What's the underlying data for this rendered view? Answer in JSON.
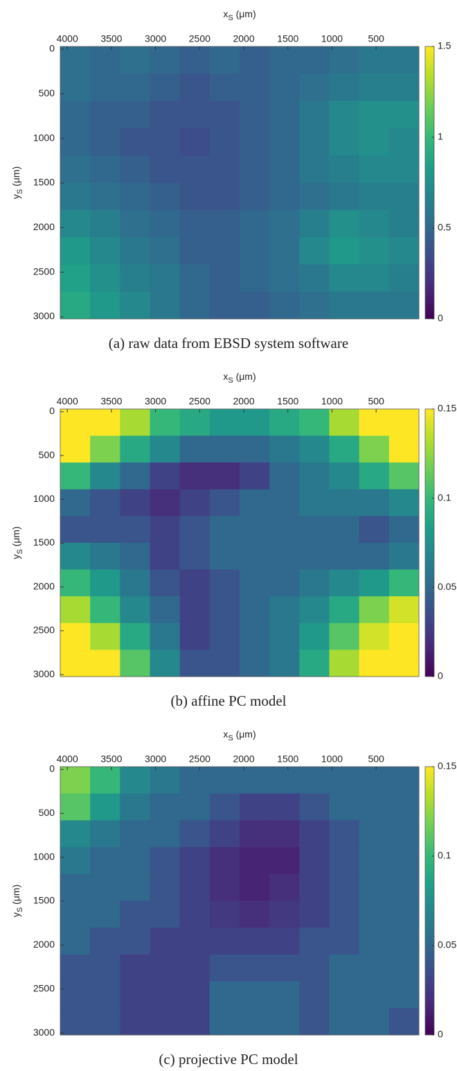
{
  "chart_data": [
    {
      "type": "heatmap",
      "caption": "(a) raw data from EBSD system software",
      "xlabel": "x",
      "xlabel_sub": "S",
      "xlabel_unit": " (μm)",
      "ylabel": "y",
      "ylabel_sub": "S",
      "ylabel_unit": " (μm)",
      "xlim": [
        4080,
        15
      ],
      "xticks": [
        4000,
        3500,
        3000,
        2500,
        2000,
        1500,
        1000,
        500
      ],
      "ylim": [
        -31,
        3023
      ],
      "yticks": [
        0,
        500,
        1000,
        1500,
        2000,
        2500,
        3000
      ],
      "colormap": "viridis",
      "zlim": [
        0,
        1.5
      ],
      "zticks": [
        0,
        0.5,
        1,
        1.5
      ],
      "z": [
        [
          0.55,
          0.5,
          0.55,
          0.5,
          0.45,
          0.5,
          0.45,
          0.5,
          0.5,
          0.55,
          0.6,
          0.6
        ],
        [
          0.55,
          0.5,
          0.5,
          0.45,
          0.4,
          0.45,
          0.45,
          0.5,
          0.55,
          0.6,
          0.65,
          0.65
        ],
        [
          0.5,
          0.45,
          0.45,
          0.4,
          0.4,
          0.4,
          0.45,
          0.5,
          0.6,
          0.7,
          0.75,
          0.75
        ],
        [
          0.5,
          0.45,
          0.4,
          0.4,
          0.35,
          0.4,
          0.45,
          0.5,
          0.6,
          0.7,
          0.75,
          0.7
        ],
        [
          0.55,
          0.5,
          0.45,
          0.4,
          0.4,
          0.4,
          0.45,
          0.5,
          0.6,
          0.65,
          0.7,
          0.7
        ],
        [
          0.6,
          0.55,
          0.5,
          0.45,
          0.4,
          0.4,
          0.45,
          0.5,
          0.55,
          0.6,
          0.65,
          0.65
        ],
        [
          0.7,
          0.65,
          0.55,
          0.5,
          0.45,
          0.45,
          0.5,
          0.55,
          0.65,
          0.75,
          0.7,
          0.65
        ],
        [
          0.8,
          0.7,
          0.6,
          0.55,
          0.45,
          0.45,
          0.5,
          0.55,
          0.7,
          0.8,
          0.75,
          0.7
        ],
        [
          0.85,
          0.75,
          0.65,
          0.6,
          0.5,
          0.45,
          0.5,
          0.55,
          0.6,
          0.7,
          0.7,
          0.65
        ],
        [
          0.9,
          0.8,
          0.7,
          0.6,
          0.5,
          0.45,
          0.45,
          0.5,
          0.55,
          0.6,
          0.6,
          0.6
        ]
      ]
    },
    {
      "type": "heatmap",
      "caption": "(b) affine PC model",
      "xlabel": "x",
      "xlabel_sub": "S",
      "xlabel_unit": " (μm)",
      "ylabel": "y",
      "ylabel_sub": "S",
      "ylabel_unit": " (μm)",
      "xlim": [
        4080,
        15
      ],
      "xticks": [
        4000,
        3500,
        3000,
        2500,
        2000,
        1500,
        1000,
        500
      ],
      "ylim": [
        -31,
        3023
      ],
      "yticks": [
        0,
        500,
        1000,
        1500,
        2000,
        2500,
        3000
      ],
      "colormap": "viridis",
      "zlim": [
        0,
        0.15
      ],
      "zticks": [
        0,
        0.05,
        0.1,
        0.15
      ],
      "z": [
        [
          0.15,
          0.15,
          0.13,
          0.1,
          0.09,
          0.08,
          0.08,
          0.09,
          0.1,
          0.13,
          0.15,
          0.15
        ],
        [
          0.15,
          0.12,
          0.09,
          0.07,
          0.05,
          0.05,
          0.05,
          0.06,
          0.07,
          0.09,
          0.12,
          0.15
        ],
        [
          0.1,
          0.07,
          0.05,
          0.03,
          0.02,
          0.02,
          0.03,
          0.05,
          0.06,
          0.07,
          0.09,
          0.11
        ],
        [
          0.05,
          0.04,
          0.03,
          0.02,
          0.03,
          0.04,
          0.05,
          0.05,
          0.06,
          0.06,
          0.06,
          0.07
        ],
        [
          0.04,
          0.04,
          0.04,
          0.03,
          0.04,
          0.05,
          0.05,
          0.05,
          0.05,
          0.05,
          0.04,
          0.05
        ],
        [
          0.07,
          0.06,
          0.05,
          0.03,
          0.04,
          0.05,
          0.05,
          0.05,
          0.05,
          0.05,
          0.05,
          0.06
        ],
        [
          0.1,
          0.08,
          0.06,
          0.04,
          0.03,
          0.04,
          0.05,
          0.05,
          0.06,
          0.07,
          0.08,
          0.1
        ],
        [
          0.13,
          0.1,
          0.07,
          0.05,
          0.03,
          0.04,
          0.05,
          0.06,
          0.07,
          0.09,
          0.12,
          0.14
        ],
        [
          0.15,
          0.13,
          0.09,
          0.06,
          0.03,
          0.04,
          0.05,
          0.06,
          0.08,
          0.11,
          0.14,
          0.15
        ],
        [
          0.15,
          0.15,
          0.11,
          0.07,
          0.04,
          0.04,
          0.05,
          0.06,
          0.09,
          0.13,
          0.15,
          0.15
        ]
      ]
    },
    {
      "type": "heatmap",
      "caption": "(c) projective PC model",
      "xlabel": "x",
      "xlabel_sub": "S",
      "xlabel_unit": " (μm)",
      "ylabel": "y",
      "ylabel_sub": "S",
      "ylabel_unit": " (μm)",
      "xlim": [
        4080,
        15
      ],
      "xticks": [
        4000,
        3500,
        3000,
        2500,
        2000,
        1500,
        1000,
        500
      ],
      "ylim": [
        -31,
        3023
      ],
      "yticks": [
        0,
        500,
        1000,
        1500,
        2000,
        2500,
        3000
      ],
      "colormap": "viridis",
      "zlim": [
        0,
        0.15
      ],
      "zticks": [
        0,
        0.05,
        0.1,
        0.15
      ],
      "z": [
        [
          0.12,
          0.1,
          0.07,
          0.06,
          0.05,
          0.05,
          0.05,
          0.05,
          0.05,
          0.05,
          0.05,
          0.05
        ],
        [
          0.11,
          0.08,
          0.06,
          0.05,
          0.05,
          0.04,
          0.03,
          0.03,
          0.04,
          0.05,
          0.05,
          0.05
        ],
        [
          0.07,
          0.06,
          0.05,
          0.05,
          0.04,
          0.03,
          0.02,
          0.02,
          0.03,
          0.04,
          0.05,
          0.05
        ],
        [
          0.06,
          0.05,
          0.05,
          0.04,
          0.03,
          0.02,
          0.015,
          0.015,
          0.03,
          0.04,
          0.05,
          0.05
        ],
        [
          0.05,
          0.05,
          0.05,
          0.04,
          0.03,
          0.02,
          0.015,
          0.02,
          0.03,
          0.04,
          0.05,
          0.05
        ],
        [
          0.05,
          0.05,
          0.04,
          0.04,
          0.03,
          0.025,
          0.02,
          0.025,
          0.03,
          0.04,
          0.05,
          0.05
        ],
        [
          0.05,
          0.04,
          0.04,
          0.03,
          0.03,
          0.03,
          0.03,
          0.03,
          0.04,
          0.04,
          0.05,
          0.05
        ],
        [
          0.04,
          0.04,
          0.03,
          0.03,
          0.03,
          0.04,
          0.04,
          0.04,
          0.04,
          0.05,
          0.05,
          0.05
        ],
        [
          0.04,
          0.04,
          0.03,
          0.03,
          0.03,
          0.05,
          0.05,
          0.05,
          0.04,
          0.05,
          0.05,
          0.05
        ],
        [
          0.04,
          0.04,
          0.03,
          0.03,
          0.03,
          0.05,
          0.05,
          0.05,
          0.04,
          0.05,
          0.05,
          0.04
        ]
      ]
    }
  ]
}
